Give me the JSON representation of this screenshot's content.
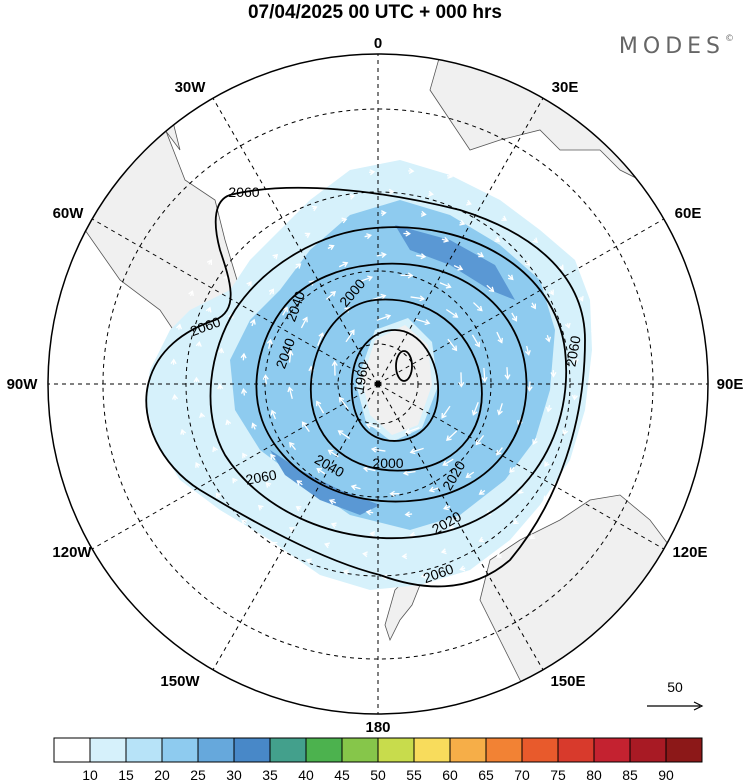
{
  "title": "07/04/2025  00 UTC  + 000 hrs",
  "brand": "MODES",
  "brand_mark": "©",
  "longitude_labels": [
    "0",
    "30E",
    "60E",
    "90E",
    "120E",
    "150E",
    "180",
    "150W",
    "120W",
    "90W",
    "60W",
    "30W"
  ],
  "contour_labels": [
    "1960",
    "2000",
    "2020",
    "2040",
    "2060",
    "2060",
    "2060",
    "2040",
    "2020",
    "2040",
    "2000",
    "2060",
    "2060"
  ],
  "vector_reference": {
    "label": "50"
  },
  "colorbar": {
    "ticks": [
      "10",
      "15",
      "20",
      "25",
      "30",
      "35",
      "40",
      "45",
      "50",
      "55",
      "60",
      "65",
      "70",
      "75",
      "80",
      "85",
      "90"
    ],
    "colors": [
      "#ffffff",
      "#d6f1fb",
      "#b7e3f8",
      "#8ecbef",
      "#66a8dc",
      "#4888c8",
      "#43a08c",
      "#4cb24e",
      "#86c64a",
      "#c8dc4c",
      "#f8dc5c",
      "#f6ae48",
      "#f28234",
      "#e85a2c",
      "#d83a2c",
      "#c42230",
      "#a81a24",
      "#8c1818"
    ]
  },
  "colors": {
    "land": "#f0f0f0",
    "coast": "#555555",
    "contour": "#000000",
    "vector": "#ffffff"
  }
}
